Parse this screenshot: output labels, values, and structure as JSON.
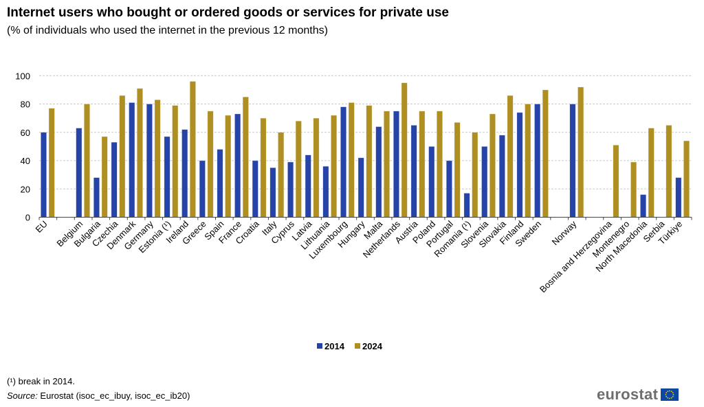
{
  "title": "Internet users who bought or ordered goods or services for private use",
  "subtitle": "(% of individuals who used the internet in the previous 12 months)",
  "footnote": "(¹) break in 2014.",
  "source_label": "Source:",
  "source_text": " Eurostat (isoc_ec_ibuy, isoc_ec_ib20)",
  "logo_text": "eurostat",
  "colors": {
    "2014": "#2643a7",
    "2024": "#b08f22"
  },
  "chart_data": {
    "type": "bar",
    "title": "Internet users who bought or ordered goods or services for private use",
    "subtitle": "(% of individuals who used the internet in the previous 12 months)",
    "ylim": [
      0,
      100
    ],
    "yticks": [
      0,
      20,
      40,
      60,
      80,
      100
    ],
    "grid": true,
    "legend_position": "bottom",
    "categories": [
      "EU",
      "",
      "Belgium",
      "Bulgaria",
      "Czechia",
      "Denmark",
      "Germany",
      "Estonia (¹)",
      "Ireland",
      "Greece",
      "Spain",
      "France",
      "Croatia",
      "Italy",
      "Cyprus",
      "Latvia",
      "Lithuania",
      "Luxembourg",
      "Hungary",
      "Malta",
      "Netherlands",
      "Austria",
      "Poland",
      "Portugal",
      "Romania (¹)",
      "Slovenia",
      "Slovakia",
      "Finland",
      "Sweden",
      "",
      "Norway",
      "",
      "Bosnia and Herzegovina",
      "Montenegro",
      "North Macedonia",
      "Serbia",
      "Türkiye"
    ],
    "series": [
      {
        "name": "2014",
        "values": [
          60,
          null,
          63,
          28,
          53,
          81,
          80,
          57,
          62,
          40,
          48,
          73,
          40,
          35,
          39,
          44,
          36,
          78,
          42,
          64,
          75,
          65,
          50,
          40,
          17,
          50,
          58,
          74,
          80,
          null,
          80,
          null,
          null,
          null,
          16,
          null,
          28
        ]
      },
      {
        "name": "2024",
        "values": [
          77,
          null,
          80,
          57,
          86,
          91,
          83,
          79,
          96,
          75,
          72,
          85,
          70,
          60,
          68,
          70,
          72,
          81,
          79,
          75,
          95,
          75,
          75,
          67,
          60,
          73,
          86,
          80,
          90,
          null,
          92,
          null,
          51,
          39,
          63,
          65,
          54
        ]
      }
    ]
  }
}
